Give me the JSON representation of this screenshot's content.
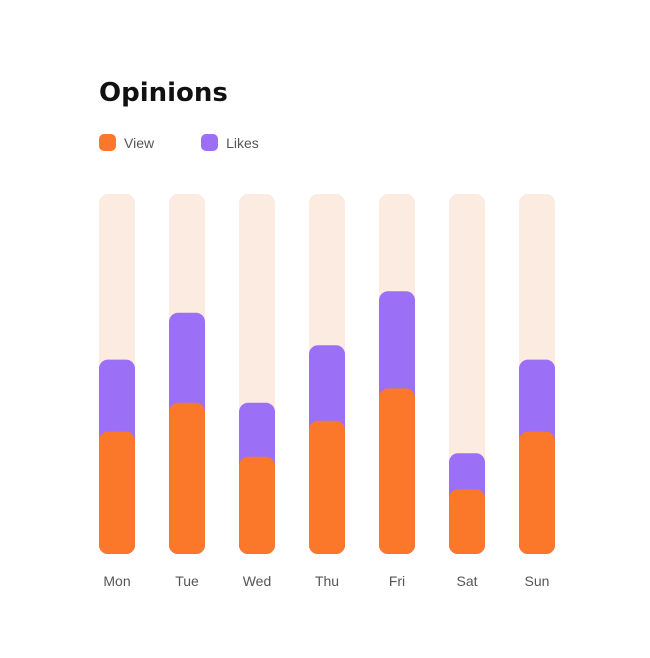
{
  "title": "Opinions",
  "legend": [
    {
      "label": "View",
      "color": "#fb772a"
    },
    {
      "label": "Likes",
      "color": "#9b70f6"
    }
  ],
  "chart_data": {
    "type": "bar",
    "stacked": true,
    "title": "Opinions",
    "categories": [
      "Mon",
      "Tue",
      "Wed",
      "Thu",
      "Fri",
      "Sat",
      "Sun"
    ],
    "series": [
      {
        "name": "View",
        "color": "#fb772a",
        "values": [
          34,
          42,
          27,
          37,
          46,
          18,
          34
        ]
      },
      {
        "name": "Likes",
        "color": "#9b70f6",
        "values": [
          20,
          25,
          15,
          21,
          27,
          10,
          20
        ]
      }
    ],
    "ylim": [
      0,
      100
    ],
    "track_color": "#fcebe0",
    "grid": false,
    "legend_position": "top-left"
  }
}
